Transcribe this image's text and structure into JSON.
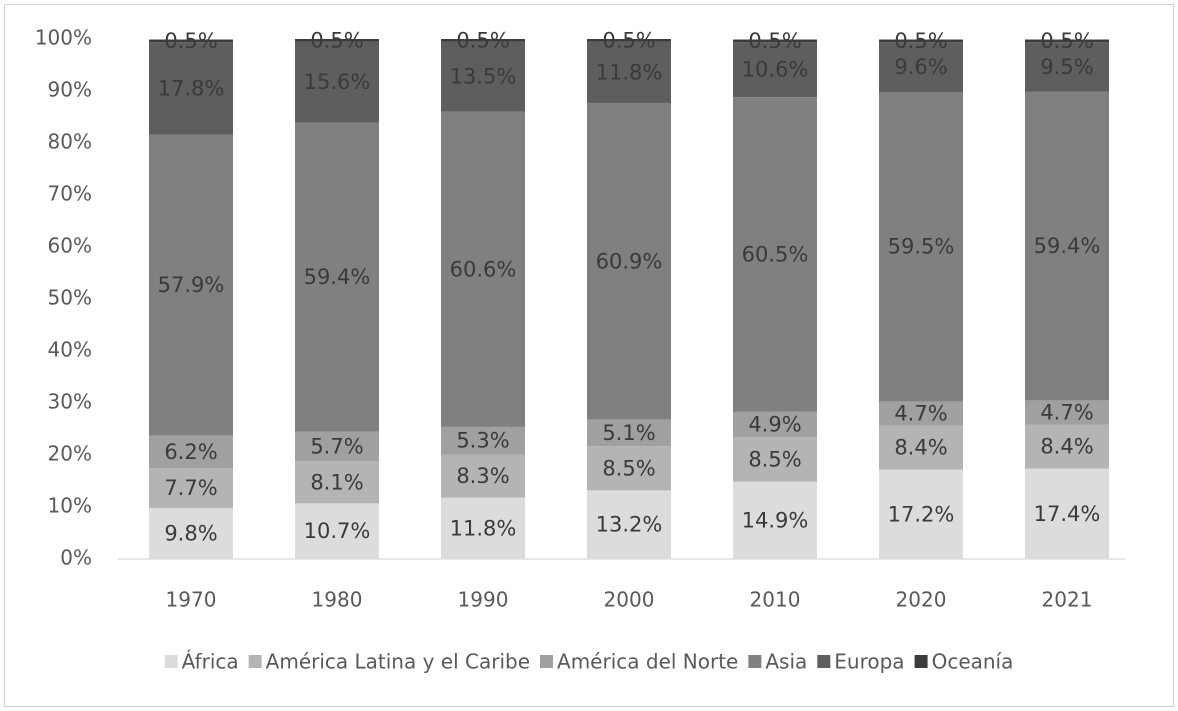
{
  "chart_data": {
    "type": "stacked_bar",
    "categories": [
      "1970",
      "1980",
      "1990",
      "2000",
      "2010",
      "2020",
      "2021"
    ],
    "series": [
      {
        "name": "África",
        "color": "#dcdcdc",
        "values": [
          9.8,
          10.7,
          11.8,
          13.2,
          14.9,
          17.2,
          17.4
        ],
        "value_labels": [
          "9.8%",
          "10.7%",
          "11.8%",
          "13.2%",
          "14.9%",
          "17.2%",
          "17.4%"
        ]
      },
      {
        "name": "América Latina y el Caribe",
        "color": "#b4b4b4",
        "values": [
          7.7,
          8.1,
          8.3,
          8.5,
          8.5,
          8.4,
          8.4
        ],
        "value_labels": [
          "7.7%",
          "8.1%",
          "8.3%",
          "8.5%",
          "8.5%",
          "8.4%",
          "8.4%"
        ]
      },
      {
        "name": "América del Norte",
        "color": "#a0a0a0",
        "values": [
          6.2,
          5.7,
          5.3,
          5.1,
          4.9,
          4.7,
          4.7
        ],
        "value_labels": [
          "6.2%",
          "5.7%",
          "5.3%",
          "5.1%",
          "4.9%",
          "4.7%",
          "4.7%"
        ]
      },
      {
        "name": "Asia",
        "color": "#808080",
        "values": [
          57.9,
          59.4,
          60.6,
          60.9,
          60.5,
          59.5,
          59.4
        ],
        "value_labels": [
          "57.9%",
          "59.4%",
          "60.6%",
          "60.9%",
          "60.5%",
          "59.5%",
          "59.4%"
        ]
      },
      {
        "name": "Europa",
        "color": "#5e5e5e",
        "values": [
          17.8,
          15.6,
          13.5,
          11.8,
          10.6,
          9.6,
          9.5
        ],
        "value_labels": [
          "17.8%",
          "15.6%",
          "13.5%",
          "11.8%",
          "10.6%",
          "9.6%",
          "9.5%"
        ]
      },
      {
        "name": "Oceanía",
        "color": "#3c3c3c",
        "values": [
          0.5,
          0.5,
          0.5,
          0.5,
          0.5,
          0.5,
          0.5
        ],
        "value_labels": [
          "0.5%",
          "0.5%",
          "0.5%",
          "0.5%",
          "0.5%",
          "0.5%",
          "0.5%"
        ]
      }
    ],
    "ylim": [
      0,
      100
    ],
    "yticks": [
      {
        "value": 0,
        "label": "0%"
      },
      {
        "value": 10,
        "label": "10%"
      },
      {
        "value": 20,
        "label": "20%"
      },
      {
        "value": 30,
        "label": "30%"
      },
      {
        "value": 40,
        "label": "40%"
      },
      {
        "value": 50,
        "label": "50%"
      },
      {
        "value": 60,
        "label": "60%"
      },
      {
        "value": 70,
        "label": "70%"
      },
      {
        "value": 80,
        "label": "80%"
      },
      {
        "value": 90,
        "label": "90%"
      },
      {
        "value": 100,
        "label": "100%"
      }
    ],
    "legend": "bottom"
  }
}
